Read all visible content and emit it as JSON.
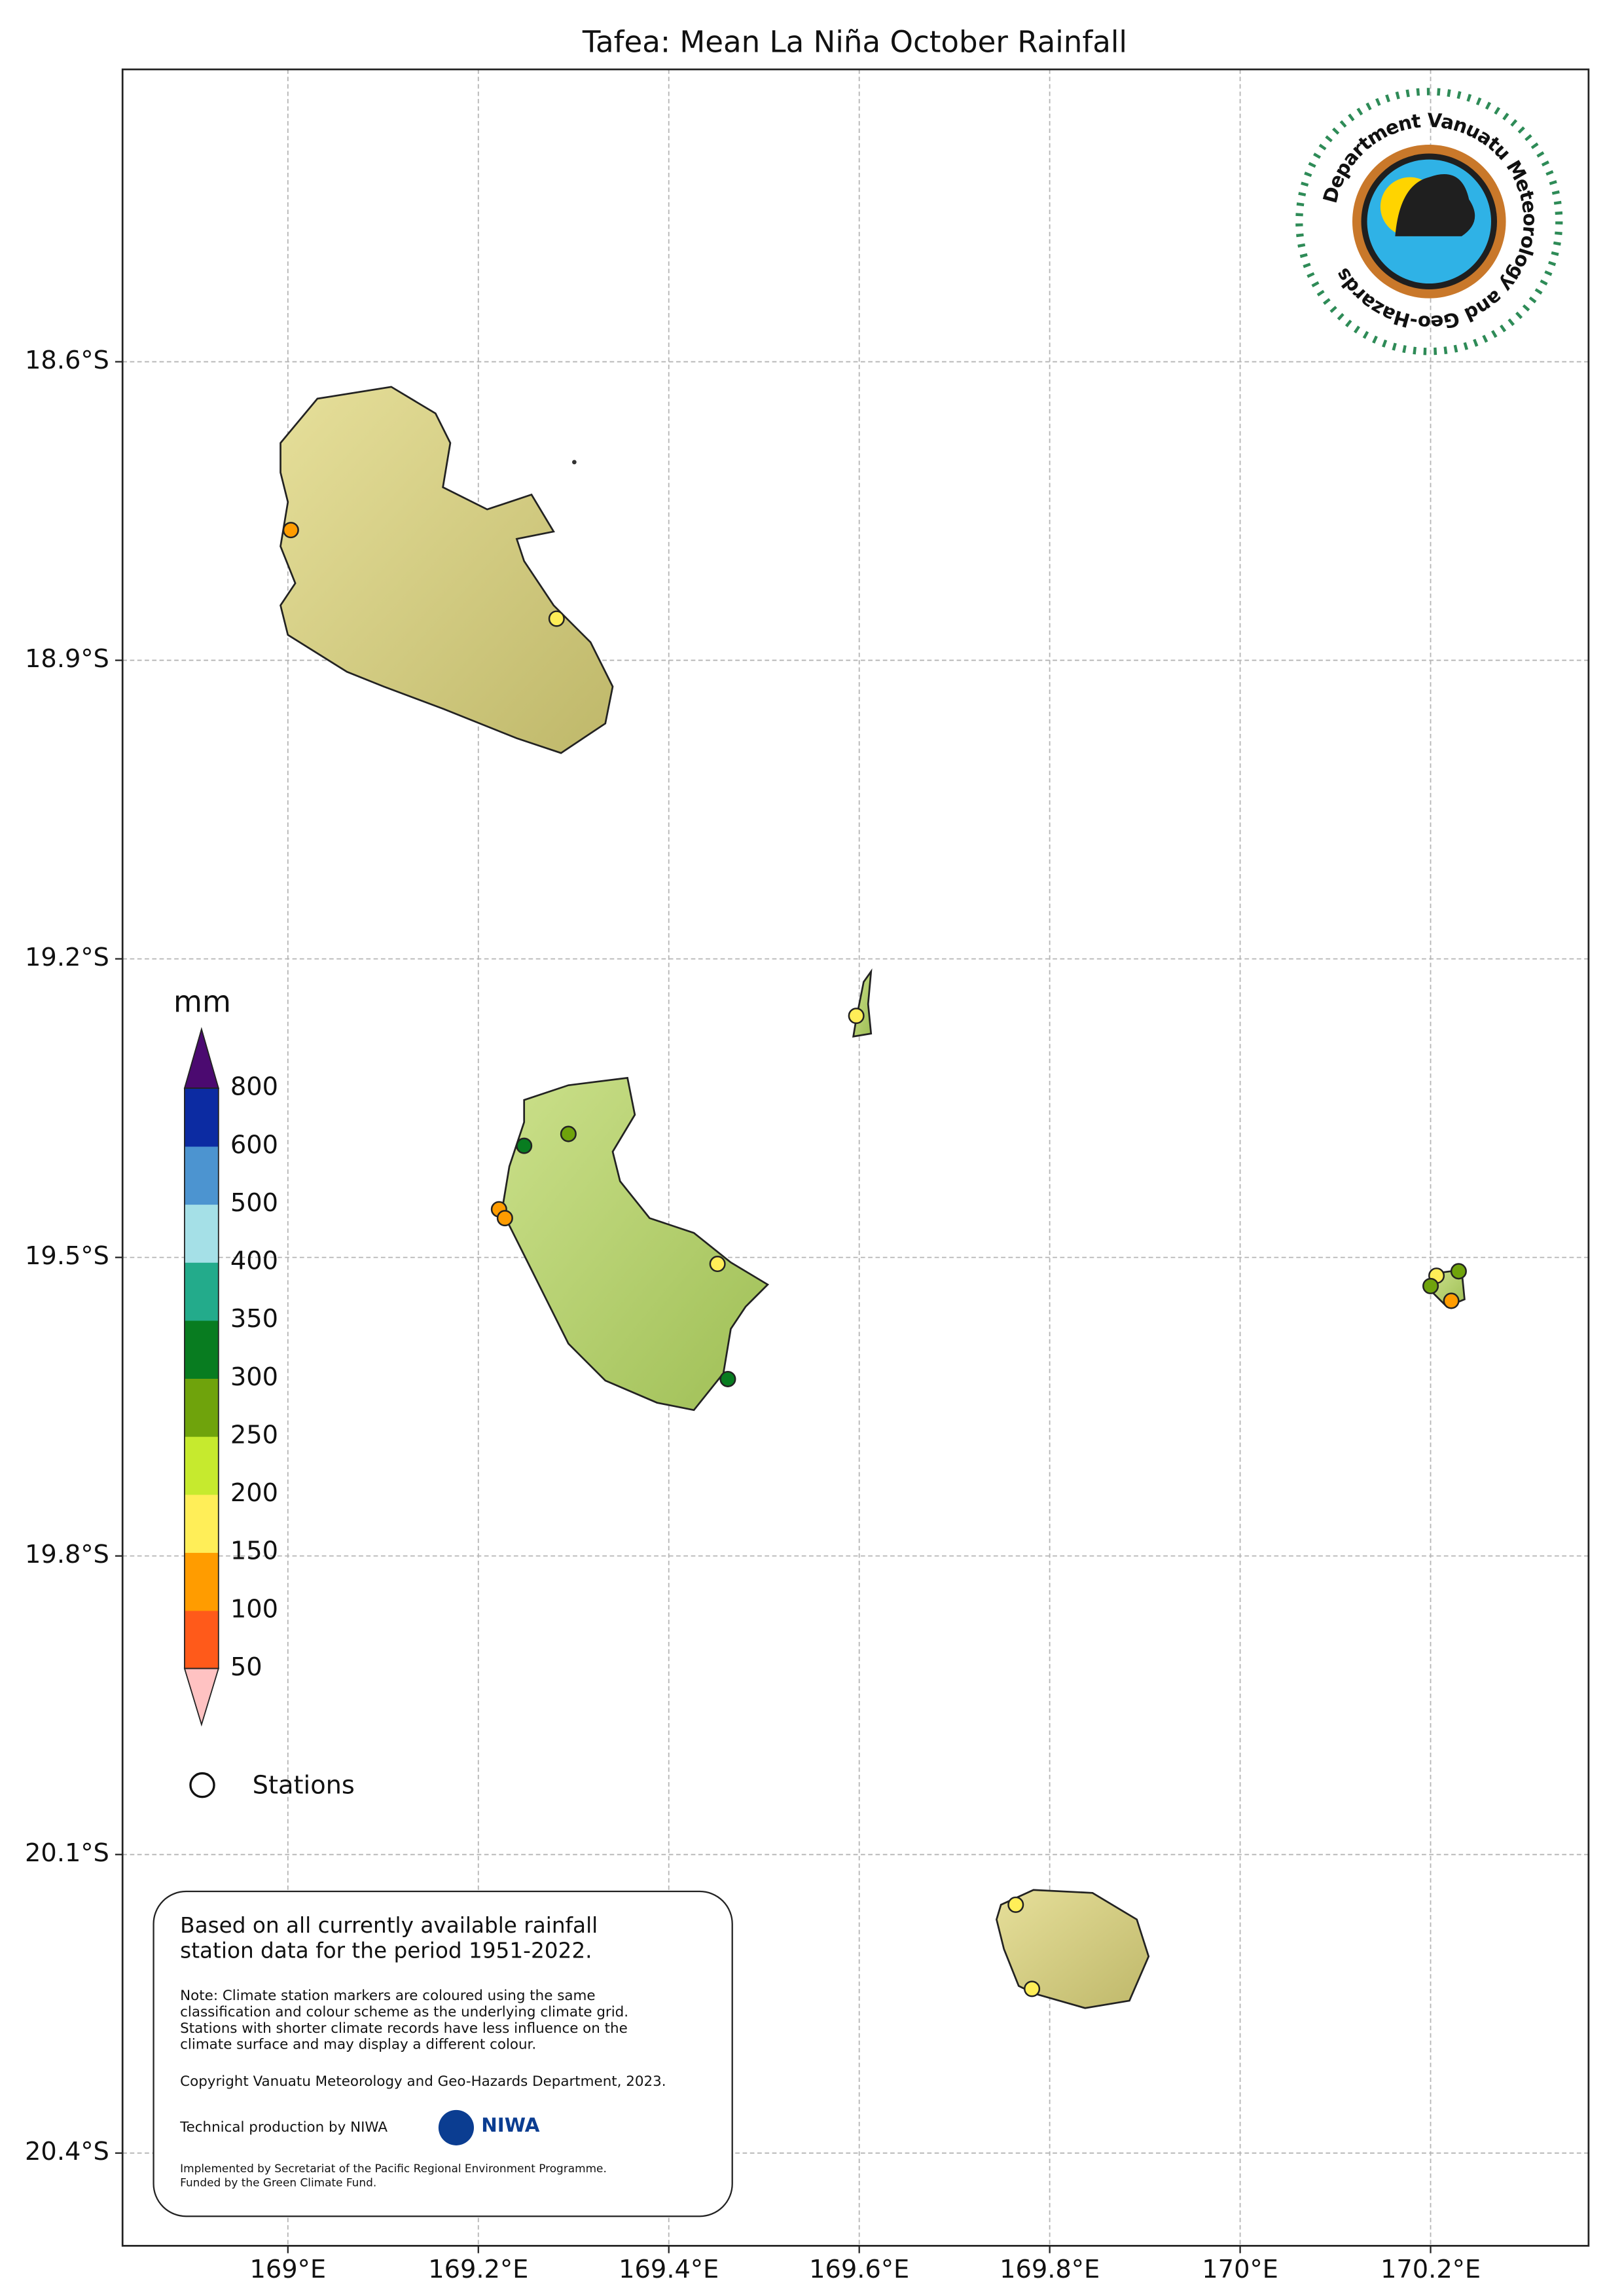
{
  "map": {
    "title": "Tafea: Mean La Niña October Rainfall",
    "lat_ticks": [
      "18.6°S",
      "18.9°S",
      "19.2°S",
      "19.5°S",
      "19.8°S",
      "20.1°S",
      "20.4°S"
    ],
    "lon_ticks": [
      "169°E",
      "169.2°E",
      "169.4°E",
      "169.6°E",
      "169.8°E",
      "170°E",
      "170.2°E"
    ],
    "colorbar": {
      "unit": "mm",
      "levels": [
        "50",
        "100",
        "150",
        "200",
        "250",
        "300",
        "350",
        "400",
        "500",
        "600",
        "800"
      ],
      "colors": [
        "#ff5a1a",
        "#ff9c00",
        "#ffee58",
        "#c6ea2e",
        "#6fa30c",
        "#087c20",
        "#23ab8b",
        "#a5e0e7",
        "#4c94d0",
        "#0c2ba2"
      ],
      "under_color": "#ffc2c2",
      "over_color": "#4b0a70"
    },
    "legend": {
      "stations": "Stations"
    },
    "notes": {
      "main": [
        "Based on all currently available rainfall",
        "station data for the period 1951-2022."
      ],
      "note": [
        "Note: Climate station markers are coloured using the same",
        "classification and colour scheme as the underlying climate grid.",
        "Stations with shorter climate records have less influence on the",
        "climate surface and may display a different colour."
      ],
      "copyright": "Copyright Vanuatu Meteorology and Geo-Hazards Department, 2023.",
      "technical": "Technical production by NIWA",
      "niwa": "NIWA",
      "implemented": [
        "Implemented by Secretariat of the Pacific Regional Environment Programme.",
        "Funded by the Green Climate Fund."
      ]
    },
    "logo_text": "Department Vanuatu Meteorology and Geo-Hazards"
  }
}
